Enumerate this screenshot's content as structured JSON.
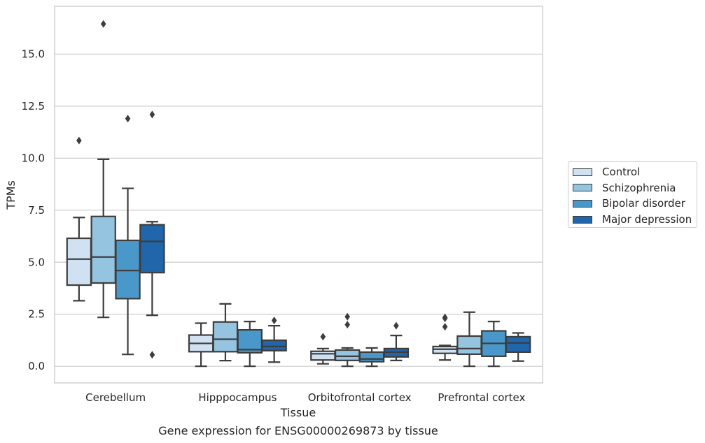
{
  "chart_data": {
    "type": "box",
    "title": "Gene expression for ENSG00000269873 by tissue",
    "xlabel": "Tissue",
    "ylabel": "TPMs",
    "ylim": [
      -0.8,
      17.3
    ],
    "yticks": [
      "0.0",
      "2.5",
      "5.0",
      "7.5",
      "10.0",
      "12.5",
      "15.0"
    ],
    "grid": true,
    "legend_position": "right",
    "categories": [
      "Cerebellum",
      "Hipppocampus",
      "Orbitofrontal cortex",
      "Prefrontal cortex"
    ],
    "series": [
      {
        "name": "Control",
        "color": "#d0e1f2",
        "boxes": [
          {
            "whislo": 3.15,
            "q1": 3.9,
            "med": 5.15,
            "q3": 6.15,
            "whishi": 7.15,
            "fliers": [
              10.85
            ]
          },
          {
            "whislo": 0.0,
            "q1": 0.7,
            "med": 1.1,
            "q3": 1.5,
            "whishi": 2.07,
            "fliers": []
          },
          {
            "whislo": 0.12,
            "q1": 0.3,
            "med": 0.6,
            "q3": 0.72,
            "whishi": 0.85,
            "fliers": [
              1.42
            ]
          },
          {
            "whislo": 0.3,
            "q1": 0.62,
            "med": 0.82,
            "q3": 0.95,
            "whishi": 1.0,
            "fliers": [
              1.9,
              2.3,
              2.35
            ]
          }
        ]
      },
      {
        "name": "Schizophrenia",
        "color": "#94c4df",
        "boxes": [
          {
            "whislo": 2.35,
            "q1": 4.0,
            "med": 5.25,
            "q3": 7.2,
            "whishi": 9.95,
            "fliers": [
              16.45
            ]
          },
          {
            "whislo": 0.27,
            "q1": 0.7,
            "med": 1.3,
            "q3": 2.13,
            "whishi": 3.0,
            "fliers": []
          },
          {
            "whislo": 0.0,
            "q1": 0.28,
            "med": 0.48,
            "q3": 0.78,
            "whishi": 0.88,
            "fliers": [
              2.0,
              2.38
            ]
          },
          {
            "whislo": 0.0,
            "q1": 0.58,
            "med": 0.85,
            "q3": 1.45,
            "whishi": 2.6,
            "fliers": []
          }
        ]
      },
      {
        "name": "Bipolar disorder",
        "color": "#4a98c9",
        "boxes": [
          {
            "whislo": 0.57,
            "q1": 3.25,
            "med": 4.6,
            "q3": 6.05,
            "whishi": 8.55,
            "fliers": [
              11.9
            ]
          },
          {
            "whislo": 0.0,
            "q1": 0.65,
            "med": 0.8,
            "q3": 1.75,
            "whishi": 2.15,
            "fliers": []
          },
          {
            "whislo": 0.0,
            "q1": 0.22,
            "med": 0.35,
            "q3": 0.68,
            "whishi": 0.88,
            "fliers": []
          },
          {
            "whislo": 0.0,
            "q1": 0.48,
            "med": 1.1,
            "q3": 1.7,
            "whishi": 2.15,
            "fliers": []
          }
        ]
      },
      {
        "name": "Major depression",
        "color": "#2165ab",
        "boxes": [
          {
            "whislo": 2.45,
            "q1": 4.5,
            "med": 6.0,
            "q3": 6.8,
            "whishi": 6.95,
            "fliers": [
              0.55,
              12.1
            ]
          },
          {
            "whislo": 0.2,
            "q1": 0.75,
            "med": 0.95,
            "q3": 1.25,
            "whishi": 1.95,
            "fliers": [
              2.2
            ]
          },
          {
            "whislo": 0.28,
            "q1": 0.45,
            "med": 0.68,
            "q3": 0.85,
            "whishi": 1.48,
            "fliers": [
              1.95
            ]
          },
          {
            "whislo": 0.25,
            "q1": 0.68,
            "med": 1.12,
            "q3": 1.42,
            "whishi": 1.6,
            "fliers": []
          }
        ]
      }
    ]
  }
}
